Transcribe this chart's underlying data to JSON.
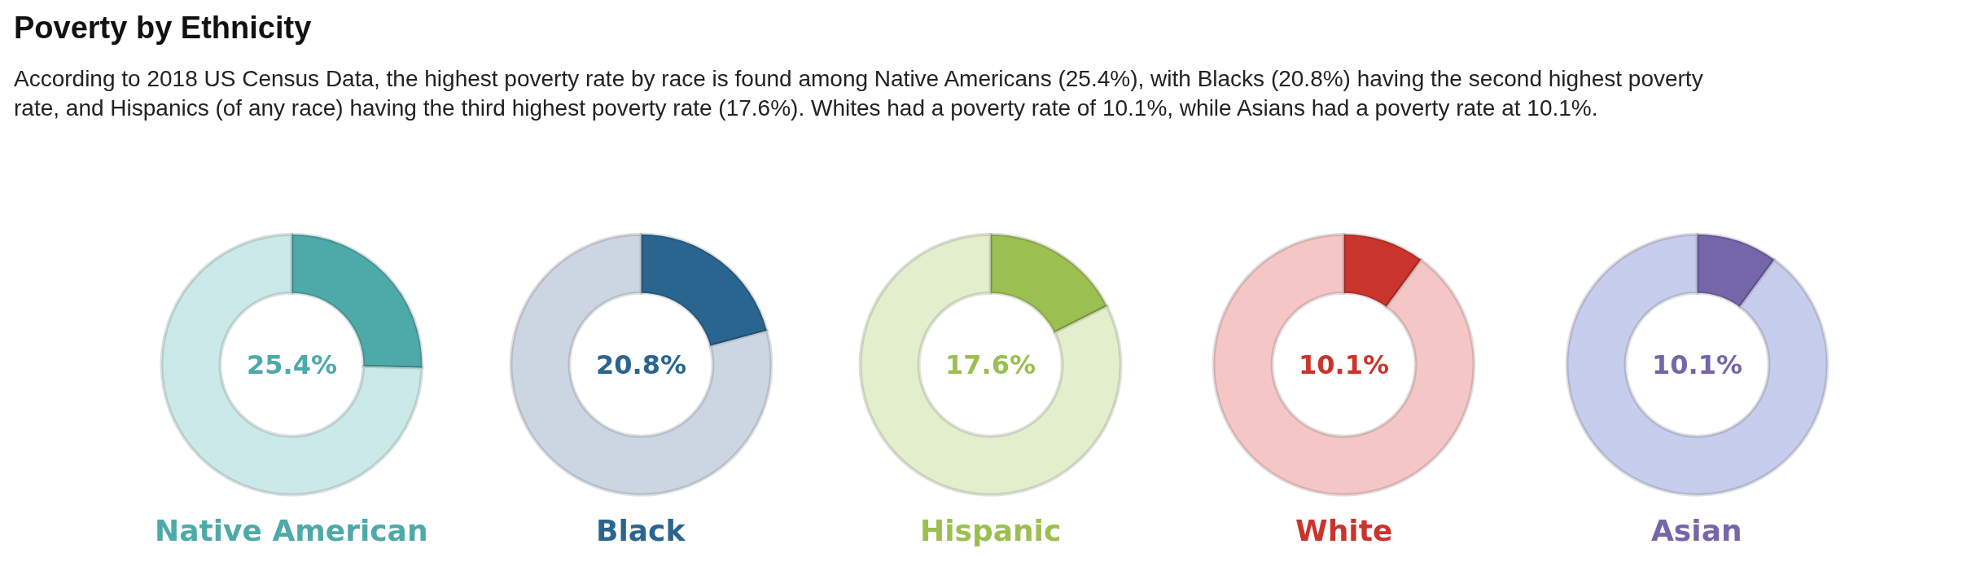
{
  "chart_data": [
    {
      "type": "donut",
      "title": "Poverty by Ethnicity",
      "subtitle": "According to 2018 US Census Data, the highest poverty rate by race is found among Native Americans (25.4%), with Blacks (20.8%) having the second highest poverty rate, and Hispanics (of any race) having the third highest poverty rate (17.6%). Whites had a poverty rate of 10.1%, while Asians had a poverty rate at 10.1%.",
      "xlabel": "Native American",
      "categories": [
        null,
        null
      ],
      "values": [
        25.4,
        74.6
      ],
      "colors": [
        "#4ea9a9",
        "#cbe9e9"
      ],
      "annotations": [
        "25.4%"
      ]
    },
    {
      "type": "donut",
      "xlabel": "Black",
      "categories": [
        null,
        null
      ],
      "values": [
        20.8,
        79.2
      ],
      "colors": [
        "#2a6590",
        "#ccd6e2"
      ],
      "annotations": [
        "20.8%"
      ]
    },
    {
      "type": "donut",
      "xlabel": "Hispanic",
      "categories": [
        null,
        null
      ],
      "values": [
        17.6,
        82.4
      ],
      "colors": [
        "#9bbf50",
        "#e3efcc"
      ],
      "annotations": [
        "17.6%"
      ]
    },
    {
      "type": "donut",
      "xlabel": "White",
      "categories": [
        null,
        null
      ],
      "values": [
        10.1,
        89.9
      ],
      "colors": [
        "#c9352c",
        "#f4c6c6"
      ],
      "annotations": [
        "10.1%"
      ]
    },
    {
      "type": "donut",
      "xlabel": "Asian",
      "categories": [
        null,
        null
      ],
      "values": [
        10.1,
        89.9
      ],
      "colors": [
        "#7566aa",
        "#c7cdec"
      ],
      "annotations": [
        "10.1%"
      ]
    }
  ]
}
